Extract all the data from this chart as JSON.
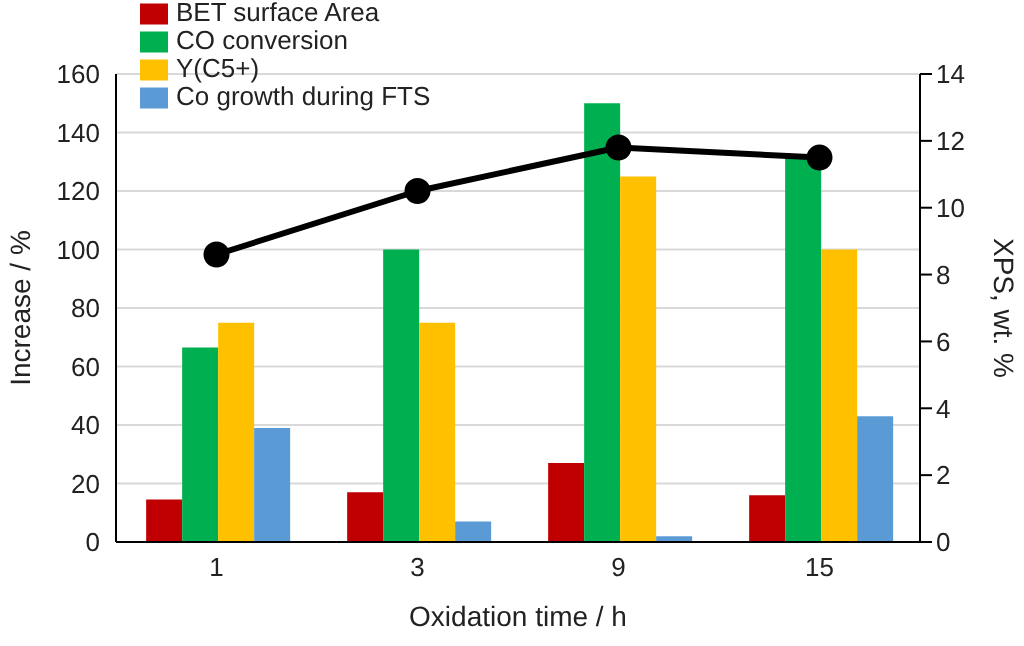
{
  "chart_data": {
    "type": "bar",
    "xlabel": "Oxidation time / h",
    "ylabel": "Increase / %",
    "y2label": "XPS, wt. %",
    "categories": [
      "1",
      "3",
      "9",
      "15"
    ],
    "series": [
      {
        "name": "BET surface Area",
        "color": "#c00000",
        "values": [
          14.5,
          17,
          27,
          16
        ]
      },
      {
        "name": "CO conversion",
        "color": "#00b050",
        "values": [
          66.5,
          100,
          150,
          132
        ]
      },
      {
        "name": "Y(C5+)",
        "color": "#ffc000",
        "values": [
          75,
          75,
          125,
          100
        ]
      },
      {
        "name": "Co growth during FTS",
        "color": "#5b9bd5",
        "values": [
          39,
          7,
          2,
          43
        ]
      },
      {
        "type": "line",
        "axis": "y2",
        "color": "#000000",
        "values": [
          8.6,
          10.5,
          11.8,
          11.5
        ]
      }
    ],
    "ylim": [
      0,
      160
    ],
    "yticks": [
      0,
      20,
      40,
      60,
      80,
      100,
      120,
      140,
      160
    ],
    "y2lim": [
      0,
      14
    ],
    "y2ticks": [
      0,
      2,
      4,
      6,
      8,
      10,
      12,
      14
    ],
    "grid": "y",
    "legend": "top left",
    "marker": "circle",
    "line_style": "solid"
  }
}
